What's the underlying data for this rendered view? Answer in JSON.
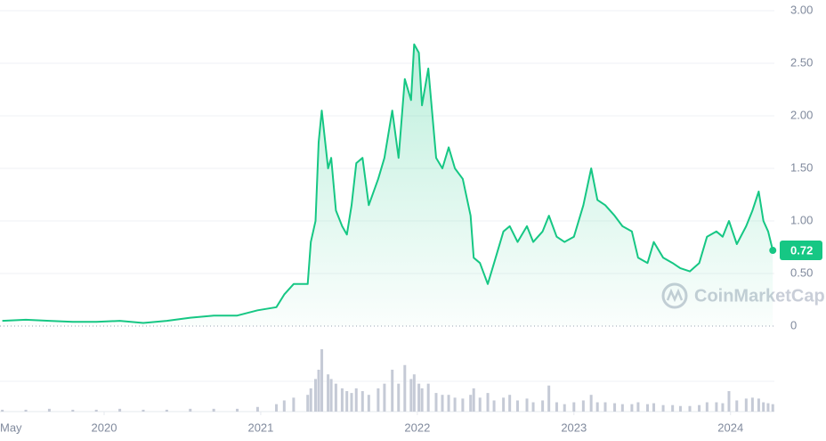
{
  "chart_data": {
    "type": "area",
    "x": [
      2019.35,
      2019.5,
      2019.65,
      2019.8,
      2019.95,
      2020.1,
      2020.25,
      2020.4,
      2020.55,
      2020.7,
      2020.85,
      2020.98,
      2021.1,
      2021.15,
      2021.21,
      2021.3,
      2021.32,
      2021.35,
      2021.37,
      2021.39,
      2021.43,
      2021.45,
      2021.48,
      2021.52,
      2021.55,
      2021.58,
      2021.61,
      2021.65,
      2021.69,
      2021.75,
      2021.79,
      2021.84,
      2021.88,
      2021.92,
      2021.96,
      2021.98,
      2022.01,
      2022.03,
      2022.07,
      2022.12,
      2022.16,
      2022.2,
      2022.24,
      2022.29,
      2022.34,
      2022.36,
      2022.4,
      2022.45,
      2022.49,
      2022.55,
      2022.59,
      2022.64,
      2022.7,
      2022.74,
      2022.8,
      2022.84,
      2022.89,
      2022.94,
      2023.0,
      2023.06,
      2023.11,
      2023.15,
      2023.2,
      2023.26,
      2023.31,
      2023.37,
      2023.41,
      2023.47,
      2023.51,
      2023.57,
      2023.63,
      2023.68,
      2023.74,
      2023.8,
      2023.85,
      2023.91,
      2023.95,
      2023.99,
      2024.04,
      2024.1,
      2024.14,
      2024.18,
      2024.21,
      2024.24,
      2024.27
    ],
    "values": [
      0.05,
      0.06,
      0.05,
      0.04,
      0.04,
      0.05,
      0.03,
      0.05,
      0.08,
      0.1,
      0.1,
      0.15,
      0.18,
      0.3,
      0.4,
      0.4,
      0.8,
      1.0,
      1.75,
      2.05,
      1.5,
      1.6,
      1.1,
      0.95,
      0.87,
      1.15,
      1.55,
      1.6,
      1.15,
      1.4,
      1.6,
      2.05,
      1.6,
      2.35,
      2.15,
      2.68,
      2.6,
      2.1,
      2.45,
      1.6,
      1.5,
      1.7,
      1.5,
      1.4,
      1.05,
      0.65,
      0.6,
      0.4,
      0.6,
      0.9,
      0.95,
      0.8,
      0.95,
      0.8,
      0.9,
      1.05,
      0.85,
      0.8,
      0.85,
      1.15,
      1.5,
      1.2,
      1.15,
      1.05,
      0.95,
      0.9,
      0.65,
      0.6,
      0.8,
      0.65,
      0.6,
      0.55,
      0.52,
      0.6,
      0.85,
      0.9,
      0.85,
      1.0,
      0.78,
      0.95,
      1.1,
      1.28,
      1.0,
      0.9,
      0.72
    ],
    "volume": [
      2,
      2,
      3,
      2,
      2,
      3,
      2,
      2,
      3,
      3,
      3,
      5,
      8,
      12,
      15,
      18,
      25,
      35,
      45,
      67,
      40,
      35,
      30,
      25,
      22,
      20,
      25,
      22,
      18,
      25,
      30,
      45,
      30,
      50,
      35,
      40,
      30,
      25,
      30,
      20,
      18,
      18,
      15,
      14,
      18,
      25,
      15,
      20,
      12,
      15,
      18,
      12,
      14,
      10,
      12,
      28,
      10,
      8,
      10,
      12,
      18,
      10,
      10,
      9,
      8,
      8,
      10,
      8,
      9,
      7,
      7,
      6,
      6,
      7,
      10,
      10,
      9,
      22,
      12,
      14,
      15,
      14,
      10,
      9,
      8
    ],
    "color": "#16c784",
    "volume_color": "#c5cad6",
    "xlim": [
      2019.335,
      2024.28
    ],
    "xticks": [
      {
        "value": 2019.33,
        "label": "May"
      },
      2020,
      2021,
      2022,
      2023,
      2024
    ],
    "ylim": [
      0,
      3
    ],
    "yticks": [
      0,
      {
        "value": 0.5,
        "label": "0.50"
      },
      {
        "value": 1,
        "label": "1.00"
      },
      {
        "value": 1.5,
        "label": "1.50"
      },
      {
        "value": 2,
        "label": "2.00"
      },
      {
        "value": 2.5,
        "label": "2.50"
      },
      {
        "value": 3,
        "label": "3.00"
      }
    ],
    "grid": true,
    "watermark": "CoinMarketCap"
  }
}
